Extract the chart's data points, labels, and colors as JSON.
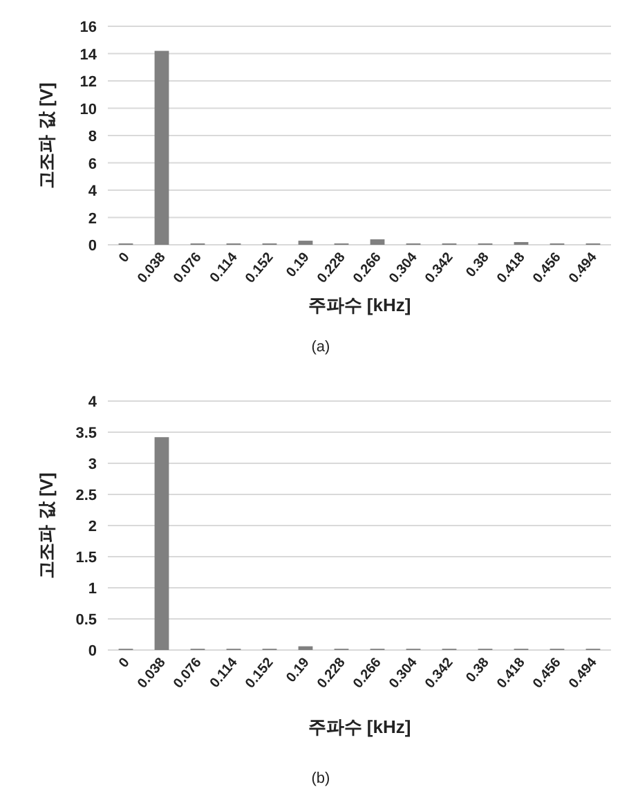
{
  "chart_data": [
    {
      "type": "bar",
      "categories": [
        "0",
        "0.038",
        "0.076",
        "0.114",
        "0.152",
        "0.19",
        "0.228",
        "0.266",
        "0.304",
        "0.342",
        "0.38",
        "0.418",
        "0.456",
        "0.494"
      ],
      "values": [
        0.1,
        14.2,
        0.1,
        0.1,
        0.1,
        0.3,
        0.1,
        0.4,
        0.1,
        0.1,
        0.1,
        0.2,
        0.1,
        0.1
      ],
      "color": "#808080",
      "xlabel": "주파수 [kHz]",
      "ylabel": "고조파 값 [V]",
      "ylim": [
        0,
        16
      ],
      "yticks": [
        0,
        2,
        4,
        6,
        8,
        10,
        12,
        14,
        16
      ],
      "grid": "y",
      "annotations": [
        "(a)"
      ]
    },
    {
      "type": "bar",
      "categories": [
        "0",
        "0.038",
        "0.076",
        "0.114",
        "0.152",
        "0.19",
        "0.228",
        "0.266",
        "0.304",
        "0.342",
        "0.38",
        "0.418",
        "0.456",
        "0.494"
      ],
      "values": [
        0.02,
        3.42,
        0.02,
        0.02,
        0.02,
        0.06,
        0.02,
        0.02,
        0.02,
        0.02,
        0.02,
        0.02,
        0.02,
        0.02
      ],
      "color": "#808080",
      "xlabel": "주파수 [kHz]",
      "ylabel": "고조파 값 [V]",
      "ylim": [
        0,
        4
      ],
      "yticks": [
        0,
        0.5,
        1,
        1.5,
        2,
        2.5,
        3,
        3.5,
        4
      ],
      "grid": "y",
      "annotations": [
        "(b)"
      ]
    }
  ]
}
